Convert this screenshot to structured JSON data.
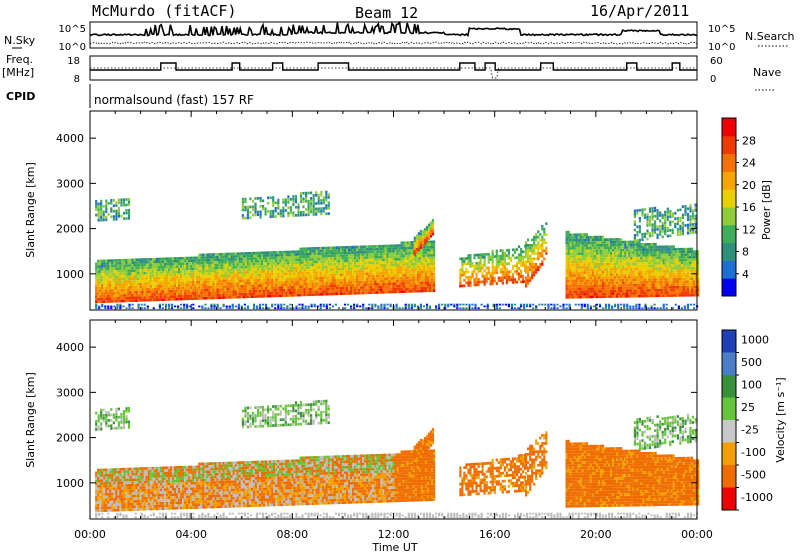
{
  "header": {
    "station": "McMurdo (fitACF)",
    "beam": "Beam 12",
    "date": "16/Apr/2011"
  },
  "noise_panel": {
    "left_label": "N.Sky",
    "right_label": "N.Search",
    "ticks": [
      "10^5",
      "10^0"
    ]
  },
  "freq_panel": {
    "left_label_1": "Freq.",
    "left_label_2": "[MHz]",
    "right_label": "Nave",
    "left_ticks": [
      "18",
      "8"
    ],
    "right_ticks": [
      "60",
      "0"
    ]
  },
  "cpid": {
    "label": "CPID",
    "mode": "normalsound (fast) 157 RF"
  },
  "chart_data": [
    {
      "type": "heatmap",
      "quantity": "Power",
      "ylabel": "Slant Range [km]",
      "ylim": [
        200,
        4600
      ],
      "y_ticks": [
        "1000",
        "2000",
        "3000",
        "4000"
      ],
      "y_tick_values": [
        1000,
        2000,
        3000,
        4000
      ],
      "colorbar_label": "Power [dB]",
      "colorbar_ticks": [
        "4",
        "8",
        "12",
        "16",
        "20",
        "24",
        "28"
      ],
      "colorbar_tick_values": [
        4,
        8,
        12,
        16,
        20,
        24,
        28
      ],
      "colorbar_range": [
        0,
        32
      ],
      "colormap": [
        "#0000ee",
        "#1e6fd2",
        "#2f8f7a",
        "#3fae5a",
        "#8fcc3a",
        "#e8d000",
        "#f6a400",
        "#f47200",
        "#ee3a00",
        "#ee0000"
      ]
    },
    {
      "type": "heatmap",
      "quantity": "Velocity",
      "ylabel": "Slant Range [km]",
      "ylim": [
        200,
        4600
      ],
      "y_ticks": [
        "1000",
        "2000",
        "3000",
        "4000"
      ],
      "y_tick_values": [
        1000,
        2000,
        3000,
        4000
      ],
      "colorbar_label": "Velocity [m s⁻¹]",
      "colorbar_ticks": [
        "1000",
        "500",
        "100",
        "25",
        "-25",
        "-100",
        "-500",
        "-1000"
      ],
      "colorbar_colors": [
        "#2040b8",
        "#4a7fc8",
        "#3a8f3a",
        "#66c43a",
        "#c8c8c8",
        "#f2a000",
        "#ef6d00",
        "#ee0000"
      ],
      "colorbar_range": [
        -1200,
        1200
      ],
      "ground_scatter_color": "#bdbdbd"
    }
  ],
  "time_axis": {
    "label": "Time UT",
    "ticks": [
      "00:00",
      "04:00",
      "08:00",
      "12:00",
      "16:00",
      "20:00",
      "00:00"
    ],
    "tick_hours": [
      0,
      4,
      8,
      12,
      16,
      20,
      24
    ],
    "range_hours": [
      0,
      24
    ]
  }
}
